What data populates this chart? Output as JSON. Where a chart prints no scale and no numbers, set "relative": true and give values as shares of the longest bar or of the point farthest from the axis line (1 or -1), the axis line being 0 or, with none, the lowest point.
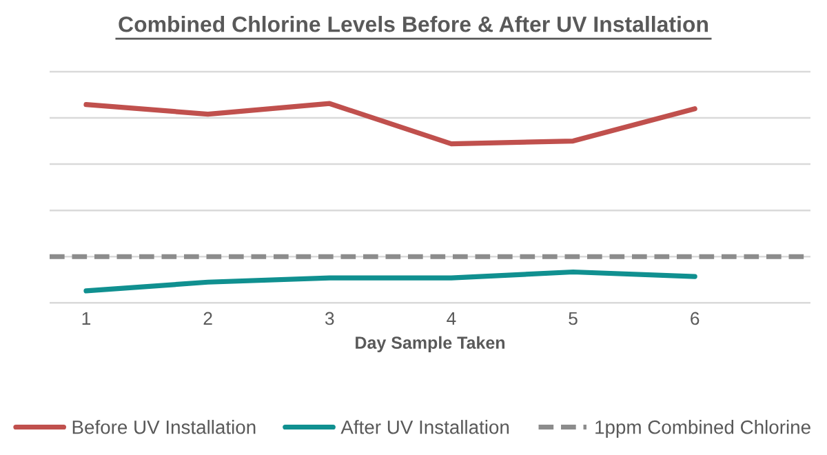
{
  "chart_data": {
    "type": "line",
    "title": "Combined Chlorine Levels Before & After UV Installation",
    "xlabel": "Day Sample Taken",
    "categories": [
      "1",
      "2",
      "3",
      "4",
      "5",
      "6"
    ],
    "relative": true,
    "series": [
      {
        "name": "Before UV Installation",
        "color": "#c0504d",
        "values": [
          0.995,
          0.947,
          1,
          0.798,
          0.812,
          0.974
        ]
      },
      {
        "name": "After UV Installation",
        "color": "#109090",
        "values": [
          0.06,
          0.104,
          0.125,
          0.125,
          0.155,
          0.132
        ]
      }
    ],
    "ref_lines": [
      {
        "axis": "y",
        "value": 0.232,
        "label": "1ppm Combined Chlorine",
        "color": "#8c8c8c",
        "line_style": "dashed"
      }
    ],
    "grid": "y",
    "legend": "bottom",
    "line_style": "solid",
    "marker": "none"
  }
}
